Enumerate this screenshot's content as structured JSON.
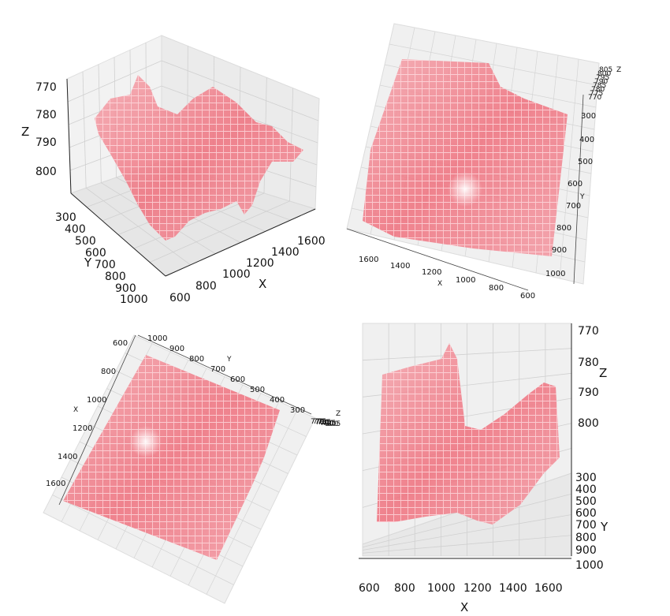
{
  "chart_data": [
    {
      "type": "scatter",
      "subtype": "3d-surface-point-cloud",
      "view": "oblique",
      "xlabel": "X",
      "ylabel": "Y",
      "zlabel": "Z",
      "x_ticks": [
        "600",
        "800",
        "1000",
        "1200",
        "1400",
        "1600"
      ],
      "y_ticks": [
        "300",
        "400",
        "500",
        "600",
        "700",
        "800",
        "900",
        "1000"
      ],
      "z_ticks": [
        "770",
        "780",
        "790",
        "800"
      ],
      "xlim": [
        600,
        1650
      ],
      "ylim": [
        300,
        1000
      ],
      "zlim": [
        770,
        805
      ],
      "color": "#f26a78",
      "grid": true
    },
    {
      "type": "scatter",
      "subtype": "3d-surface-point-cloud",
      "view": "top-down rotated",
      "xlabel": "X",
      "ylabel": "Y",
      "zlabel": "Z",
      "x_ticks": [
        "1600",
        "1400",
        "1200",
        "1000",
        "800",
        "600"
      ],
      "y_ticks": [
        "300",
        "400",
        "500",
        "600",
        "700",
        "800",
        "900",
        "1000"
      ],
      "z_ticks": [
        "805",
        "800",
        "795",
        "790",
        "785",
        "780",
        "775",
        "770"
      ],
      "color": "#f26a78",
      "grid": true
    },
    {
      "type": "scatter",
      "subtype": "3d-surface-point-cloud",
      "view": "top-down diagonal",
      "xlabel": "X",
      "ylabel": "Y",
      "zlabel": "Z",
      "x_ticks": [
        "600",
        "800",
        "1000",
        "1200",
        "1400",
        "1600"
      ],
      "y_ticks": [
        "1000",
        "900",
        "800",
        "700",
        "600",
        "500",
        "400",
        "300"
      ],
      "z_ticks": [
        "770",
        "775",
        "780",
        "785",
        "790",
        "795",
        "800",
        "805"
      ],
      "color": "#f26a78",
      "grid": true
    },
    {
      "type": "scatter",
      "subtype": "3d-surface-point-cloud",
      "view": "side (X-Z)",
      "xlabel": "X",
      "ylabel": "Y",
      "zlabel": "Z",
      "x_ticks": [
        "600",
        "800",
        "1000",
        "1200",
        "1400",
        "1600"
      ],
      "y_ticks": [
        "300",
        "400",
        "500",
        "600",
        "700",
        "800",
        "900",
        "1000"
      ],
      "z_ticks": [
        "770",
        "780",
        "790",
        "800"
      ],
      "color": "#f26a78",
      "grid": true
    }
  ]
}
